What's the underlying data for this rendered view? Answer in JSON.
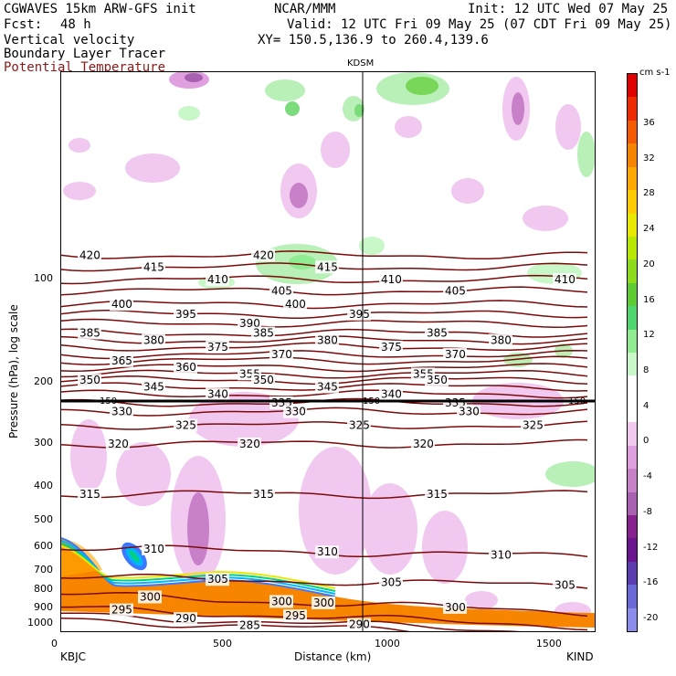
{
  "header": {
    "model": "CGWAVES 15km ARW-GFS init",
    "org": "NCAR/MMM",
    "init": "Init: 12 UTC Wed 07 May 25",
    "fcst_label": "Fcst:",
    "fcst_value": "48 h",
    "valid": "Valid: 12 UTC Fri 09 May 25 (07 CDT Fri 09 May 25)",
    "field1": "Vertical velocity",
    "field2": "Boundary Layer Tracer",
    "field3": "Potential Temperature",
    "xy": "XY= 150.5,136.9 to 260.4,139.6"
  },
  "colors": {
    "theta_lines": "#7a0a0a",
    "field3_text": "#8b1a1a"
  },
  "chart_data": {
    "type": "cross-section",
    "station_mid": "KDSM",
    "station_left": "KBJC",
    "station_right": "KIND",
    "xlabel": "Distance (km)",
    "ylabel": "Pressure (hPa), log scale",
    "xlim": [
      0,
      1650
    ],
    "ylim": [
      1050,
      25
    ],
    "x_ticks": [
      "0",
      "500",
      "1000",
      "1500"
    ],
    "y_ticks": [
      "100",
      "200",
      "300",
      "400",
      "500",
      "600",
      "700",
      "800",
      "900",
      "1000"
    ],
    "colorbar": {
      "unit": "cm s-1",
      "labels": [
        "36",
        "32",
        "28",
        "24",
        "20",
        "16",
        "12",
        "8",
        "4",
        "0",
        "-4",
        "-8",
        "-12",
        "-16",
        "-20"
      ],
      "colors": [
        "#e00000",
        "#f02a00",
        "#f55a00",
        "#f88500",
        "#ffa800",
        "#ffcc00",
        "#e8e800",
        "#b8e800",
        "#8cdc1a",
        "#5ccc30",
        "#50d870",
        "#90ec90",
        "#c8f8c8",
        "#ffffff",
        "#ffffff",
        "#f0c8f0",
        "#e0a0e0",
        "#c880c8",
        "#a860b0",
        "#882090",
        "#6a1490",
        "#5a3cb0",
        "#6a6ad8",
        "#8c8cec"
      ]
    },
    "theta_contours": [
      {
        "value": 420,
        "p": 85
      },
      {
        "value": 415,
        "p": 92
      },
      {
        "value": 410,
        "p": 100
      },
      {
        "value": 405,
        "p": 108
      },
      {
        "value": 400,
        "p": 118
      },
      {
        "value": 395,
        "p": 126
      },
      {
        "value": 390,
        "p": 134
      },
      {
        "value": 385,
        "p": 143
      },
      {
        "value": 380,
        "p": 150
      },
      {
        "value": 375,
        "p": 157
      },
      {
        "value": 370,
        "p": 165
      },
      {
        "value": 365,
        "p": 172
      },
      {
        "value": 360,
        "p": 180
      },
      {
        "value": 355,
        "p": 188
      },
      {
        "value": 350,
        "p": 196
      },
      {
        "value": 345,
        "p": 205
      },
      {
        "value": 340,
        "p": 215
      },
      {
        "value": 335,
        "p": 228
      },
      {
        "value": 330,
        "p": 242
      },
      {
        "value": 325,
        "p": 265
      },
      {
        "value": 320,
        "p": 300
      },
      {
        "value": 315,
        "p": 420
      },
      {
        "value": 310,
        "p": 600
      },
      {
        "value": 305,
        "p": 730
      },
      {
        "value": 300,
        "p": 820
      },
      {
        "value": 295,
        "p": 900
      },
      {
        "value": 290,
        "p": 940
      },
      {
        "value": 285,
        "p": 970
      }
    ],
    "theta_labels_shown": [
      "420",
      "415",
      "405",
      "410",
      "420",
      "395",
      "390",
      "400",
      "395",
      "400",
      "405",
      "415",
      "410",
      "410",
      "380",
      "385",
      "375",
      "375",
      "385",
      "380",
      "380",
      "385",
      "370",
      "370",
      "365",
      "360",
      "355",
      "355",
      "350",
      "350",
      "350",
      "345",
      "345",
      "340",
      "340",
      "335",
      "335",
      "330",
      "330",
      "330",
      "325",
      "325",
      "325",
      "320",
      "320",
      "320",
      "315",
      "315",
      "315",
      "310",
      "310",
      "310",
      "305",
      "305",
      "305",
      "300",
      "300",
      "300",
      "300",
      "295",
      "295",
      "290",
      "290",
      "285"
    ],
    "ref_line_labels": [
      "150",
      "150",
      "150"
    ]
  }
}
